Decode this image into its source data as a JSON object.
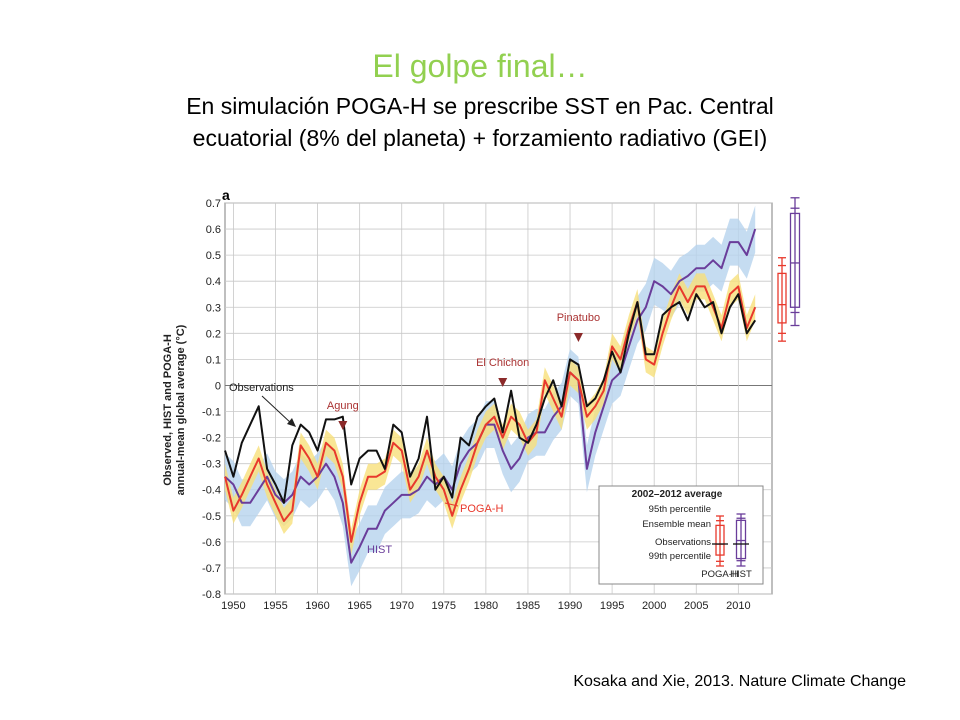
{
  "slide": {
    "title": "El golpe final…",
    "subtitle_line1": "En simulación POGA-H se prescribe SST en Pac. Central",
    "subtitle_line2": "ecuatorial (8% del planeta) + forzamiento radiativo (GEI)",
    "caption": "Kosaka and Xie, 2013. Nature Climate Change"
  },
  "colors": {
    "observations": "#111111",
    "poga_h": "#e8392c",
    "hist": "#6a3d9a",
    "poga_band": "#f7e07a",
    "hist_band": "#b7d3ee"
  },
  "chart_data": {
    "type": "line",
    "panel_label": "a",
    "ylabel_line1": "Observed, HIST and POGA-H",
    "ylabel_line2": "annual-mean global average (°C)",
    "xlim": [
      1949,
      2014
    ],
    "ylim": [
      -0.8,
      0.7
    ],
    "xticks": [
      1950,
      1955,
      1960,
      1965,
      1970,
      1975,
      1980,
      1985,
      1990,
      1995,
      2000,
      2005,
      2010
    ],
    "yticks": [
      0.7,
      0.6,
      0.5,
      0.4,
      0.3,
      0.2,
      0.1,
      0,
      -0.1,
      -0.2,
      -0.3,
      -0.4,
      -0.5,
      -0.6,
      -0.7,
      -0.8
    ],
    "grid": true,
    "x": [
      1949,
      1950,
      1951,
      1952,
      1953,
      1954,
      1955,
      1956,
      1957,
      1958,
      1959,
      1960,
      1961,
      1962,
      1963,
      1964,
      1965,
      1966,
      1967,
      1968,
      1969,
      1970,
      1971,
      1972,
      1973,
      1974,
      1975,
      1976,
      1977,
      1978,
      1979,
      1980,
      1981,
      1982,
      1983,
      1984,
      1985,
      1986,
      1987,
      1988,
      1989,
      1990,
      1991,
      1992,
      1993,
      1994,
      1995,
      1996,
      1997,
      1998,
      1999,
      2000,
      2001,
      2002,
      2003,
      2004,
      2005,
      2006,
      2007,
      2008,
      2009,
      2010,
      2011,
      2012
    ],
    "series": [
      {
        "name": "Observations",
        "key": "obs",
        "values": [
          -0.25,
          -0.35,
          -0.22,
          -0.15,
          -0.08,
          -0.32,
          -0.38,
          -0.45,
          -0.23,
          -0.15,
          -0.18,
          -0.25,
          -0.13,
          -0.13,
          -0.12,
          -0.38,
          -0.28,
          -0.25,
          -0.25,
          -0.32,
          -0.15,
          -0.18,
          -0.35,
          -0.28,
          -0.12,
          -0.4,
          -0.35,
          -0.43,
          -0.2,
          -0.23,
          -0.12,
          -0.08,
          -0.05,
          -0.18,
          -0.02,
          -0.2,
          -0.22,
          -0.15,
          -0.05,
          0.02,
          -0.08,
          0.1,
          0.08,
          -0.08,
          -0.05,
          0.02,
          0.13,
          0.05,
          0.2,
          0.32,
          0.12,
          0.12,
          0.27,
          0.3,
          0.32,
          0.25,
          0.35,
          0.3,
          0.32,
          0.2,
          0.3,
          0.35,
          0.2,
          0.25
        ]
      },
      {
        "name": "POGA-H",
        "key": "poga",
        "values": [
          -0.35,
          -0.48,
          -0.42,
          -0.35,
          -0.28,
          -0.38,
          -0.45,
          -0.52,
          -0.48,
          -0.23,
          -0.28,
          -0.35,
          -0.22,
          -0.25,
          -0.35,
          -0.6,
          -0.45,
          -0.35,
          -0.35,
          -0.33,
          -0.22,
          -0.25,
          -0.4,
          -0.35,
          -0.25,
          -0.35,
          -0.4,
          -0.5,
          -0.4,
          -0.32,
          -0.22,
          -0.15,
          -0.12,
          -0.2,
          -0.12,
          -0.15,
          -0.22,
          -0.18,
          0.02,
          -0.05,
          -0.12,
          0.05,
          0.02,
          -0.12,
          -0.08,
          -0.02,
          0.15,
          0.1,
          0.22,
          0.32,
          0.1,
          0.08,
          0.2,
          0.3,
          0.38,
          0.32,
          0.38,
          0.38,
          0.3,
          0.22,
          0.35,
          0.38,
          0.22,
          0.3
        ]
      },
      {
        "name": "HIST",
        "key": "hist",
        "values": [
          -0.35,
          -0.38,
          -0.45,
          -0.45,
          -0.4,
          -0.35,
          -0.42,
          -0.45,
          -0.42,
          -0.35,
          -0.38,
          -0.35,
          -0.3,
          -0.35,
          -0.45,
          -0.68,
          -0.62,
          -0.55,
          -0.55,
          -0.48,
          -0.45,
          -0.42,
          -0.42,
          -0.4,
          -0.35,
          -0.38,
          -0.35,
          -0.4,
          -0.3,
          -0.25,
          -0.22,
          -0.15,
          -0.15,
          -0.25,
          -0.32,
          -0.28,
          -0.2,
          -0.18,
          -0.18,
          -0.12,
          -0.08,
          0.05,
          0.02,
          -0.32,
          -0.18,
          -0.08,
          0.02,
          0.05,
          0.15,
          0.25,
          0.3,
          0.4,
          0.38,
          0.35,
          0.4,
          0.42,
          0.45,
          0.45,
          0.48,
          0.45,
          0.55,
          0.55,
          0.5,
          0.6
        ]
      }
    ],
    "annotations": {
      "observations_label": "Observations",
      "poga_label": "POGA-H",
      "hist_label": "HIST",
      "volcanoes": [
        {
          "name": "Agung",
          "year": 1963
        },
        {
          "name": "El Chichon",
          "year": 1982
        },
        {
          "name": "Pinatubo",
          "year": 1991
        }
      ]
    },
    "boxplots": {
      "poga": {
        "p1": 0.17,
        "p5": 0.2,
        "q1": 0.24,
        "median": 0.31,
        "q3": 0.43,
        "p95": 0.46,
        "p99": 0.49
      },
      "hist": {
        "p1": 0.23,
        "p5": 0.28,
        "q1": 0.3,
        "median": 0.47,
        "q3": 0.66,
        "p95": 0.68,
        "p99": 0.72
      }
    },
    "legend": {
      "title": "2002–2012 average",
      "p95": "95th percentile",
      "ensemble_mean": "Ensemble mean",
      "observations": "Observations",
      "p99": "99th percentile",
      "poga": "POGA-H",
      "hist": "HIST"
    }
  }
}
